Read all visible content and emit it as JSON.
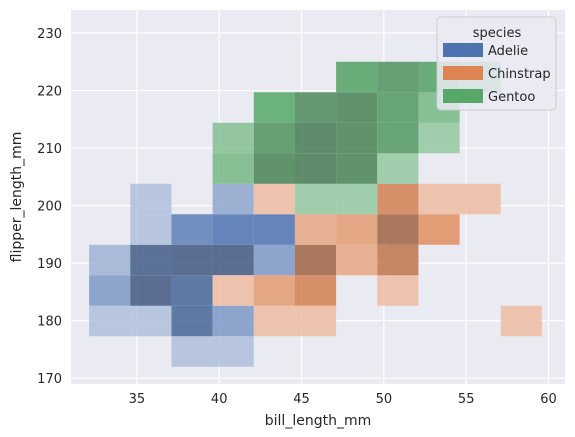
{
  "chart_data": {
    "type": "heatmap",
    "xlabel": "bill_length_mm",
    "ylabel": "flipper_length_mm",
    "xlim": [
      31.0,
      61.0
    ],
    "ylim": [
      169.0,
      234.0
    ],
    "x_ticks": [
      35,
      40,
      45,
      50,
      55,
      60
    ],
    "y_ticks": [
      170,
      180,
      190,
      200,
      210,
      220,
      230
    ],
    "x_bins": [
      32.1,
      34.6,
      37.1,
      39.6,
      42.1,
      44.6,
      47.1,
      49.6,
      52.1,
      54.6,
      57.1,
      59.6
    ],
    "y_bins": [
      172.0,
      177.3,
      182.6,
      187.9,
      193.2,
      198.5,
      203.8,
      209.1,
      214.4,
      219.7,
      225.0,
      230.3
    ],
    "grid": true,
    "legend": {
      "title": "species",
      "placement": "top-right",
      "entries": [
        "Adelie",
        "Chinstrap",
        "Gentoo"
      ]
    },
    "series": [
      {
        "name": "Adelie",
        "color": "#4c72b0",
        "cells": [
          {
            "xi": 0,
            "yi": 1,
            "level": 0.4
          },
          {
            "xi": 0,
            "yi": 2,
            "level": 0.55
          },
          {
            "xi": 0,
            "yi": 3,
            "level": 0.45
          },
          {
            "xi": 1,
            "yi": 1,
            "level": 0.4
          },
          {
            "xi": 1,
            "yi": 2,
            "level": 1.0
          },
          {
            "xi": 1,
            "yi": 3,
            "level": 0.95
          },
          {
            "xi": 1,
            "yi": 4,
            "level": 0.4
          },
          {
            "xi": 1,
            "yi": 5,
            "level": 0.4
          },
          {
            "xi": 2,
            "yi": 0,
            "level": 0.4
          },
          {
            "xi": 2,
            "yi": 1,
            "level": 0.85
          },
          {
            "xi": 2,
            "yi": 2,
            "level": 0.85
          },
          {
            "xi": 2,
            "yi": 3,
            "level": 1.0
          },
          {
            "xi": 2,
            "yi": 4,
            "level": 0.65
          },
          {
            "xi": 3,
            "yi": 0,
            "level": 0.4
          },
          {
            "xi": 3,
            "yi": 1,
            "level": 0.55
          },
          {
            "xi": 3,
            "yi": 3,
            "level": 1.0
          },
          {
            "xi": 3,
            "yi": 4,
            "level": 0.7
          },
          {
            "xi": 3,
            "yi": 5,
            "level": 0.5
          },
          {
            "xi": 4,
            "yi": 3,
            "level": 0.55
          },
          {
            "xi": 4,
            "yi": 4,
            "level": 0.7
          }
        ]
      },
      {
        "name": "Chinstrap",
        "color": "#dd8452",
        "cells": [
          {
            "xi": 3,
            "yi": 2,
            "level": 0.45
          },
          {
            "xi": 4,
            "yi": 1,
            "level": 0.45
          },
          {
            "xi": 4,
            "yi": 2,
            "level": 0.6
          },
          {
            "xi": 4,
            "yi": 5,
            "level": 0.45
          },
          {
            "xi": 5,
            "yi": 1,
            "level": 0.45
          },
          {
            "xi": 5,
            "yi": 2,
            "level": 0.75
          },
          {
            "xi": 5,
            "yi": 3,
            "level": 1.0
          },
          {
            "xi": 5,
            "yi": 4,
            "level": 0.55
          },
          {
            "xi": 6,
            "yi": 3,
            "level": 0.55
          },
          {
            "xi": 6,
            "yi": 4,
            "level": 0.6
          },
          {
            "xi": 7,
            "yi": 2,
            "level": 0.45
          },
          {
            "xi": 7,
            "yi": 3,
            "level": 0.85
          },
          {
            "xi": 7,
            "yi": 4,
            "level": 1.0
          },
          {
            "xi": 7,
            "yi": 5,
            "level": 0.75
          },
          {
            "xi": 8,
            "yi": 4,
            "level": 0.65
          },
          {
            "xi": 8,
            "yi": 5,
            "level": 0.45
          },
          {
            "xi": 9,
            "yi": 5,
            "level": 0.45
          },
          {
            "xi": 10,
            "yi": 1,
            "level": 0.45
          }
        ]
      },
      {
        "name": "Gentoo",
        "color": "#55a868",
        "cells": [
          {
            "xi": 3,
            "yi": 6,
            "level": 0.6
          },
          {
            "xi": 3,
            "yi": 7,
            "level": 0.55
          },
          {
            "xi": 4,
            "yi": 6,
            "level": 0.95
          },
          {
            "xi": 4,
            "yi": 7,
            "level": 0.85
          },
          {
            "xi": 4,
            "yi": 8,
            "level": 0.7
          },
          {
            "xi": 5,
            "yi": 5,
            "level": 0.5
          },
          {
            "xi": 5,
            "yi": 6,
            "level": 1.0
          },
          {
            "xi": 5,
            "yi": 7,
            "level": 1.0
          },
          {
            "xi": 5,
            "yi": 8,
            "level": 0.9
          },
          {
            "xi": 6,
            "yi": 5,
            "level": 0.5
          },
          {
            "xi": 6,
            "yi": 6,
            "level": 0.95
          },
          {
            "xi": 6,
            "yi": 7,
            "level": 0.95
          },
          {
            "xi": 6,
            "yi": 8,
            "level": 0.95
          },
          {
            "xi": 6,
            "yi": 9,
            "level": 0.75
          },
          {
            "xi": 7,
            "yi": 6,
            "level": 0.5
          },
          {
            "xi": 7,
            "yi": 7,
            "level": 0.8
          },
          {
            "xi": 7,
            "yi": 8,
            "level": 0.8
          },
          {
            "xi": 7,
            "yi": 9,
            "level": 0.85
          },
          {
            "xi": 8,
            "yi": 7,
            "level": 0.5
          },
          {
            "xi": 8,
            "yi": 8,
            "level": 0.6
          },
          {
            "xi": 8,
            "yi": 9,
            "level": 0.75
          },
          {
            "xi": 9,
            "yi": 9,
            "level": 0.6
          }
        ]
      }
    ]
  }
}
